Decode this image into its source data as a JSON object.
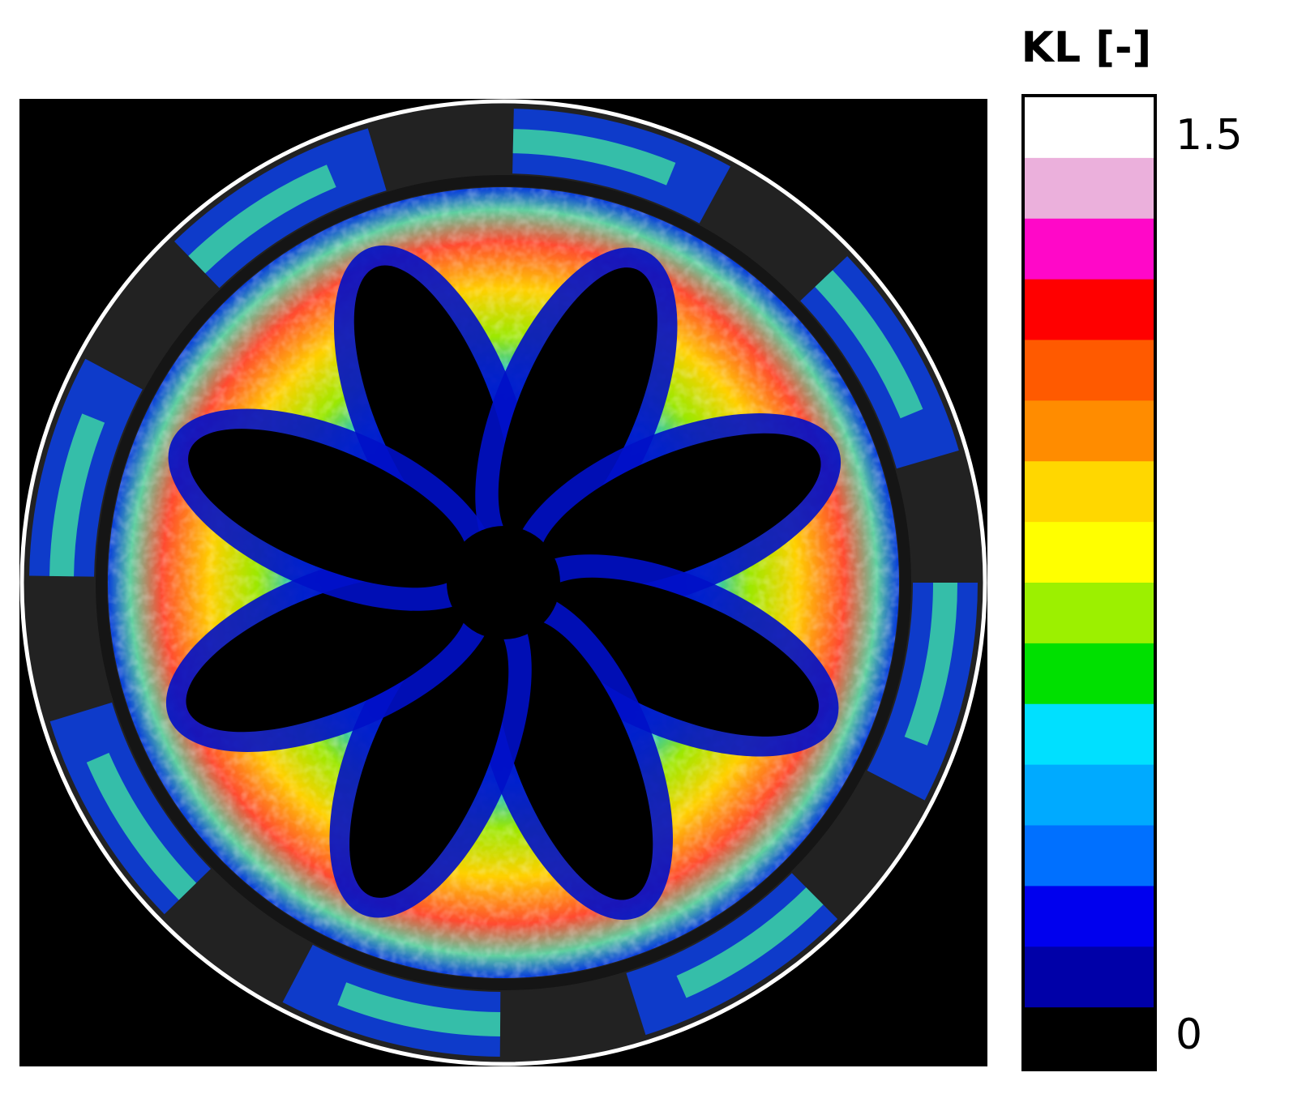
{
  "colorbar": {
    "title": "KL [-]",
    "max": 1.5,
    "min": 0,
    "colors": [
      "#ffffff",
      "#ebb0dc",
      "#ff08c8",
      "#ff0000",
      "#ff5a00",
      "#ff8c00",
      "#ffd700",
      "#ffff00",
      "#9cf000",
      "#00e000",
      "#00e0ff",
      "#00aaff",
      "#0070ff",
      "#0000ee",
      "#0000a8",
      "#000000"
    ]
  }
}
